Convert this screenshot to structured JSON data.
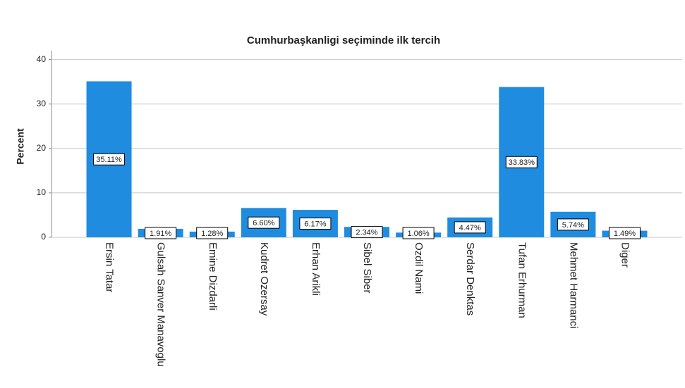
{
  "chart_data": {
    "type": "bar",
    "title": "Cumhurbaşkanligi seçiminde ilk tercih",
    "y_label": "Percent",
    "categories": [
      "Ersin Tatar",
      "Gulsah Sanver Manavoglu",
      "Emine Dizdarli",
      "Kudret Ozersay",
      "Erhan Arikli",
      "Sibel Siber",
      "Ozdil Nami",
      "Serdar Denktas",
      "Tufan Erhurman",
      "Mehmet Harmanci",
      "Diger"
    ],
    "values": [
      35.11,
      1.91,
      1.28,
      6.6,
      6.17,
      2.34,
      1.06,
      4.47,
      33.83,
      5.74,
      1.49
    ],
    "value_labels": [
      "35.11%",
      "1.91%",
      "1.28%",
      "6.60%",
      "6.17%",
      "2.34%",
      "1.06%",
      "4.47%",
      "33.83%",
      "5.74%",
      "1.49%"
    ],
    "color": "#1f8ce0",
    "ylim": [
      0,
      42
    ],
    "yticks": [
      0,
      10,
      20,
      30,
      40
    ],
    "grid": true
  }
}
